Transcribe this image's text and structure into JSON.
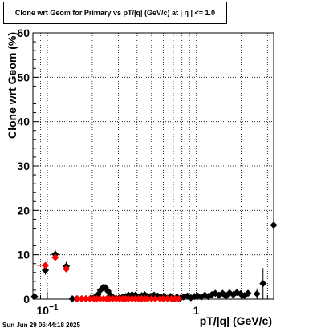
{
  "title": "Clone wrt Geom for Primary vs pT/|q| (GeV/c) at |  η  | <= 1.0",
  "timestamp": "Sun Jun 29 06:44:18 2025",
  "chart_data": {
    "type": "scatter",
    "title": "Clone wrt Geom for Primary vs pT/|q| (GeV/c) at |  η  | <= 1.0",
    "xlabel": "pT/|q| (GeV/c)",
    "ylabel": "Clone wrt Geom (%)",
    "xscale": "log",
    "xlim": [
      0.08,
      3.3
    ],
    "ylim": [
      0,
      60
    ],
    "yticks": [
      0,
      10,
      20,
      30,
      40,
      50,
      60
    ],
    "xtick_labels": [
      {
        "value": 0.1,
        "base": "10",
        "exp": "−1"
      },
      {
        "value": 1,
        "text": "1"
      }
    ],
    "grid": true,
    "colors": {
      "black": "#000000",
      "red": "#ff0000"
    },
    "series": [
      {
        "color": "black",
        "marker": "diamond",
        "points": [
          {
            "x": 0.082,
            "y": 0.6,
            "yerr": 0.4
          },
          {
            "x": 0.097,
            "y": 6.5,
            "xerr_lo": 0.005,
            "xerr_hi": 0.005,
            "yerr": 1.0
          },
          {
            "x": 0.113,
            "y": 10.1,
            "xerr_lo": 0.007,
            "xerr_hi": 0.007,
            "yerr": 1.0
          },
          {
            "x": 0.134,
            "y": 7.4,
            "xerr_lo": 0.005,
            "xerr_hi": 0.005,
            "yerr": 1.0
          },
          {
            "x": 0.147,
            "y": 0.1
          },
          {
            "x": 0.158,
            "y": 0.1
          },
          {
            "x": 0.17,
            "y": 0.1
          },
          {
            "x": 0.182,
            "y": 0.1
          },
          {
            "x": 0.195,
            "y": 0.2
          },
          {
            "x": 0.207,
            "y": 0.4
          },
          {
            "x": 0.218,
            "y": 1.0
          },
          {
            "x": 0.227,
            "y": 2.0
          },
          {
            "x": 0.236,
            "y": 2.6
          },
          {
            "x": 0.245,
            "y": 2.6
          },
          {
            "x": 0.255,
            "y": 1.8
          },
          {
            "x": 0.265,
            "y": 0.9
          },
          {
            "x": 0.278,
            "y": 0.3
          },
          {
            "x": 0.29,
            "y": 0.2
          },
          {
            "x": 0.305,
            "y": 0.3
          },
          {
            "x": 0.32,
            "y": 0.5
          },
          {
            "x": 0.335,
            "y": 0.6
          },
          {
            "x": 0.35,
            "y": 0.9
          },
          {
            "x": 0.37,
            "y": 1.0
          },
          {
            "x": 0.39,
            "y": 0.9
          },
          {
            "x": 0.41,
            "y": 0.5
          },
          {
            "x": 0.43,
            "y": 0.8
          },
          {
            "x": 0.45,
            "y": 1.0
          },
          {
            "x": 0.47,
            "y": 0.6
          },
          {
            "x": 0.49,
            "y": 0.6
          },
          {
            "x": 0.52,
            "y": 0.9
          },
          {
            "x": 0.55,
            "y": 0.7
          },
          {
            "x": 0.58,
            "y": 0.4
          },
          {
            "x": 0.61,
            "y": 0.6
          },
          {
            "x": 0.64,
            "y": 0.2
          },
          {
            "x": 0.67,
            "y": 0.6
          },
          {
            "x": 0.7,
            "y": 0.2
          },
          {
            "x": 0.74,
            "y": 0.5
          },
          {
            "x": 0.78,
            "y": 0.2
          },
          {
            "x": 0.82,
            "y": 0.5
          },
          {
            "x": 0.87,
            "y": 0.7
          },
          {
            "x": 0.92,
            "y": 0.3
          },
          {
            "x": 0.97,
            "y": 0.6
          },
          {
            "x": 1.02,
            "y": 0.7
          },
          {
            "x": 1.08,
            "y": 0.5
          },
          {
            "x": 1.14,
            "y": 0.9
          },
          {
            "x": 1.2,
            "y": 0.6
          },
          {
            "x": 1.27,
            "y": 1.0
          },
          {
            "x": 1.34,
            "y": 1.3
          },
          {
            "x": 1.42,
            "y": 0.9
          },
          {
            "x": 1.5,
            "y": 1.3
          },
          {
            "x": 1.58,
            "y": 0.7
          },
          {
            "x": 1.67,
            "y": 1.4
          },
          {
            "x": 1.77,
            "y": 1.0
          },
          {
            "x": 1.87,
            "y": 1.5
          },
          {
            "x": 1.98,
            "y": 1.2
          },
          {
            "x": 2.1,
            "y": 0.8
          },
          {
            "x": 2.22,
            "y": 1.3
          },
          {
            "x": 2.55,
            "y": 1.2,
            "yerr": 1.2
          },
          {
            "x": 2.8,
            "y": 3.5,
            "yerr": 3.5
          },
          {
            "x": 3.3,
            "y": 16.7,
            "yerr_lo": 16.7,
            "yerr_hi": 15.3
          }
        ]
      },
      {
        "color": "red",
        "marker": "diamond",
        "points": [
          {
            "x": 0.097,
            "y": 7.6,
            "xerr_lo": 0.012,
            "xerr_hi": 0.005,
            "yerr": 0.6
          },
          {
            "x": 0.113,
            "y": 9.4,
            "xerr_lo": 0.007,
            "xerr_hi": 0.007,
            "yerr": 0.6
          },
          {
            "x": 0.134,
            "y": 6.8,
            "xerr_lo": 0.004,
            "xerr_hi": 0.004,
            "yerr": 0.6
          },
          {
            "x": 0.159,
            "y": 0.1
          },
          {
            "x": 0.17,
            "y": 0.1
          },
          {
            "x": 0.181,
            "y": 0.1
          },
          {
            "x": 0.193,
            "y": 0.1
          },
          {
            "x": 0.205,
            "y": 0.1
          },
          {
            "x": 0.215,
            "y": 0.1
          },
          {
            "x": 0.226,
            "y": 0.1
          },
          {
            "x": 0.238,
            "y": 0.1
          },
          {
            "x": 0.25,
            "y": 0.1
          },
          {
            "x": 0.262,
            "y": 0.1
          },
          {
            "x": 0.275,
            "y": 0.1
          },
          {
            "x": 0.29,
            "y": 0.1
          },
          {
            "x": 0.305,
            "y": 0.1
          },
          {
            "x": 0.32,
            "y": 0.1
          },
          {
            "x": 0.335,
            "y": 0.1
          },
          {
            "x": 0.35,
            "y": 0.1
          },
          {
            "x": 0.37,
            "y": 0.1
          },
          {
            "x": 0.39,
            "y": 0.1
          },
          {
            "x": 0.41,
            "y": 0.1
          },
          {
            "x": 0.43,
            "y": 0.1
          },
          {
            "x": 0.45,
            "y": 0.1
          },
          {
            "x": 0.47,
            "y": 0.1
          },
          {
            "x": 0.5,
            "y": 0.1
          },
          {
            "x": 0.53,
            "y": 0.1
          },
          {
            "x": 0.57,
            "y": 0.1
          },
          {
            "x": 0.6,
            "y": 0.1
          },
          {
            "x": 0.64,
            "y": 0.1
          },
          {
            "x": 0.68,
            "y": 0.1
          },
          {
            "x": 0.72,
            "y": 0.1
          },
          {
            "x": 0.76,
            "y": 0.1
          }
        ]
      }
    ]
  }
}
